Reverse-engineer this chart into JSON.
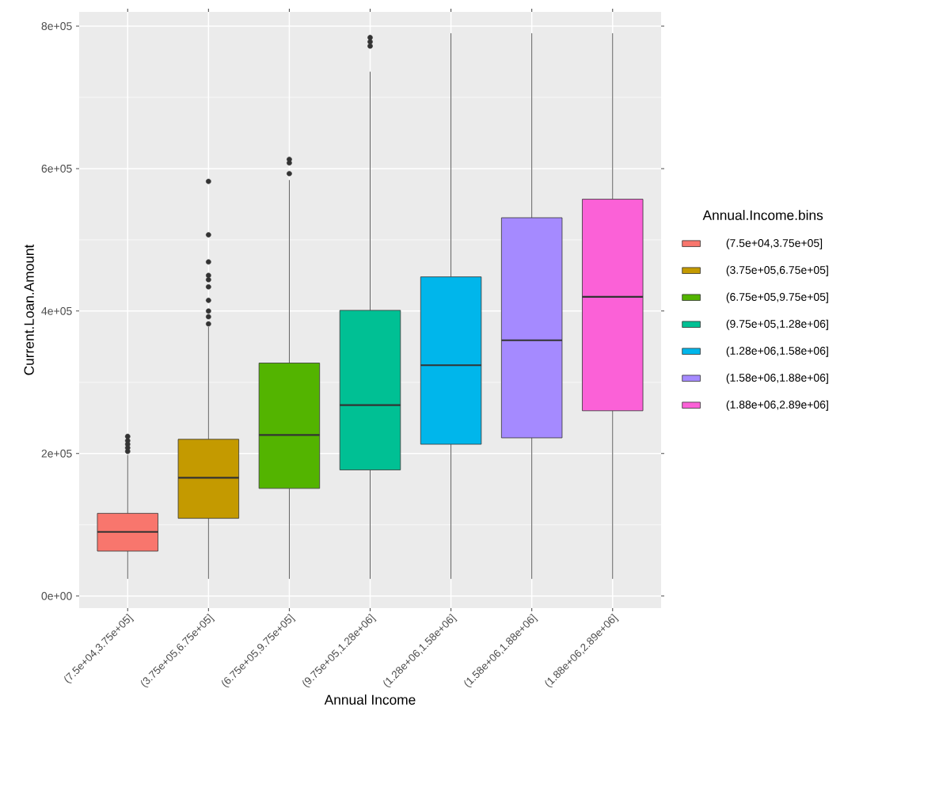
{
  "chart_data": {
    "type": "box",
    "xlabel": "Annual Income",
    "ylabel": "Current.Loan.Amount",
    "legend_title": "Annual.Income.bins",
    "categories": [
      "(7.5e+04,3.75e+05]",
      "(3.75e+05,6.75e+05]",
      "(6.75e+05,9.75e+05]",
      "(9.75e+05,1.28e+06]",
      "(1.28e+06,1.58e+06]",
      "(1.58e+06,1.88e+06]",
      "(1.88e+06,2.89e+06]"
    ],
    "series": [
      {
        "name": "(7.5e+04,3.75e+05]",
        "color": "#f8766d",
        "boxes": [
          {
            "low": 24000,
            "q1": 63000,
            "median": 90000,
            "q3": 116000,
            "high": 198000,
            "outliers": [
              203000,
              208000,
              213000,
              218000,
              224000
            ]
          },
          null,
          null,
          null,
          null,
          null,
          null
        ]
      },
      {
        "name": "(3.75e+05,6.75e+05]",
        "color": "#c49a00",
        "boxes": [
          null,
          {
            "low": 24000,
            "q1": 109000,
            "median": 166000,
            "q3": 220000,
            "high": 378000,
            "outliers": [
              382000,
              392000,
              400000,
              415000,
              434000,
              444000,
              450000,
              469000,
              507000,
              582000
            ]
          },
          null,
          null,
          null,
          null,
          null
        ]
      },
      {
        "name": "(6.75e+05,9.75e+05]",
        "color": "#53b400",
        "boxes": [
          null,
          null,
          {
            "low": 24000,
            "q1": 151000,
            "median": 226000,
            "q3": 327000,
            "high": 584000,
            "outliers": [
              593000,
              608000,
              613000
            ]
          },
          null,
          null,
          null,
          null
        ]
      },
      {
        "name": "(9.75e+05,1.28e+06]",
        "color": "#00c094",
        "boxes": [
          null,
          null,
          null,
          {
            "low": 24000,
            "q1": 177000,
            "median": 268000,
            "q3": 401000,
            "high": 736000,
            "outliers": [
              772000,
              778000,
              784000
            ]
          },
          null,
          null,
          null
        ]
      },
      {
        "name": "(1.28e+06,1.58e+06]",
        "color": "#00b6eb",
        "boxes": [
          null,
          null,
          null,
          null,
          {
            "low": 24000,
            "q1": 213000,
            "median": 324000,
            "q3": 448000,
            "high": 790000
          },
          null,
          null
        ]
      },
      {
        "name": "(1.58e+06,1.88e+06]",
        "color": "#a58aff",
        "boxes": [
          null,
          null,
          null,
          null,
          null,
          {
            "low": 24000,
            "q1": 222000,
            "median": 359000,
            "q3": 531000,
            "high": 790000
          },
          null
        ]
      },
      {
        "name": "(1.88e+06,2.89e+06]",
        "color": "#fb61d7",
        "boxes": [
          null,
          null,
          null,
          null,
          null,
          null,
          {
            "low": 24000,
            "q1": 260000,
            "median": 420000,
            "q3": 557000,
            "high": 790000
          }
        ]
      }
    ],
    "ylim": [
      -17000,
      820000
    ],
    "yticks": [
      {
        "value": 0,
        "label": "0e+00"
      },
      {
        "value": 200000,
        "label": "2e+05"
      },
      {
        "value": 400000,
        "label": "4e+05"
      },
      {
        "value": 600000,
        "label": "6e+05"
      },
      {
        "value": 800000,
        "label": "8e+05"
      }
    ],
    "grid": true,
    "legend": "right"
  }
}
